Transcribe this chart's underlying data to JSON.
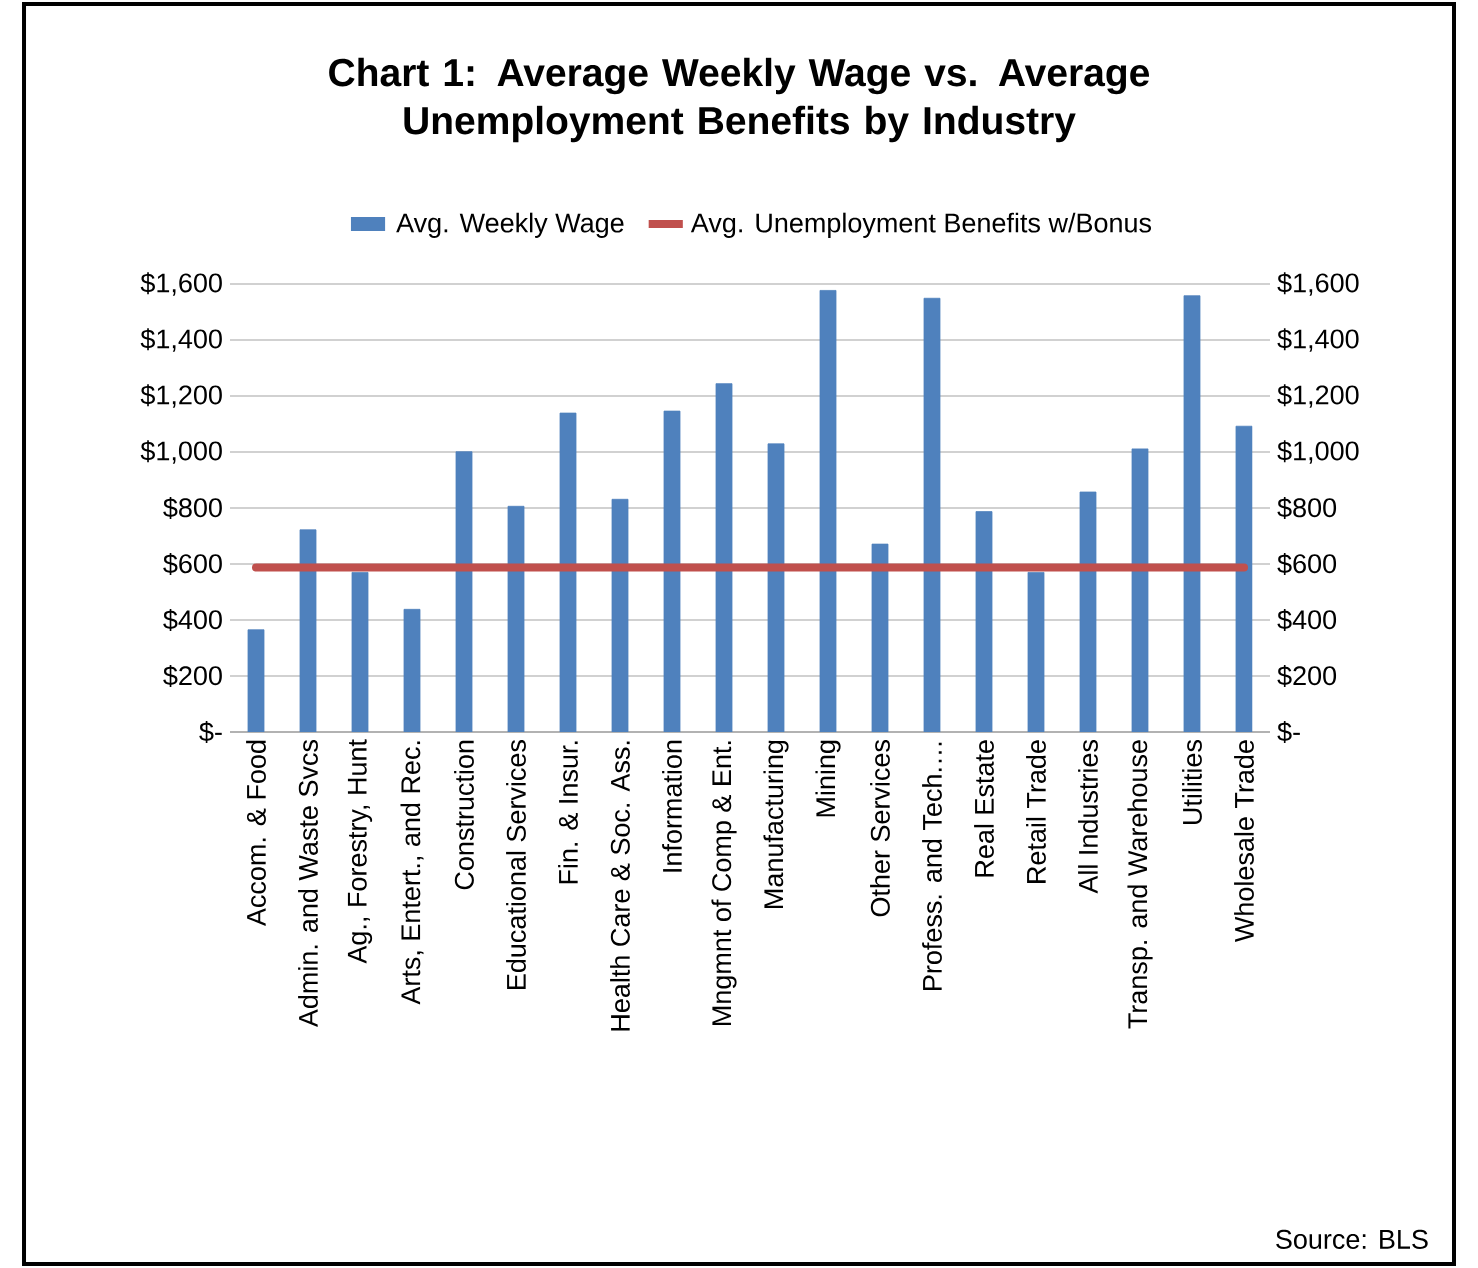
{
  "chart_data": {
    "type": "bar",
    "title": "Chart 1: Average Weekly Wage vs. Average Unemployment Benefits by Industry",
    "categories": [
      "Accom. & Food",
      "Admin. and Waste Svcs",
      "Ag., Forestry, Hunt",
      "Arts, Entert., and Rec.",
      "Construction",
      "Educational Services",
      "Fin. & Insur.",
      "Health Care & Soc. Ass.",
      "Information",
      "Mngmnt of Comp & Ent.",
      "Manufacturing",
      "Mining",
      "Other Services",
      "Profess. and Tech.…",
      "Real Estate",
      "Retail Trade",
      "All Industries",
      "Transp. and Warehouse",
      "Utilities",
      "Wholesale Trade"
    ],
    "series": [
      {
        "name": "Avg. Weekly Wage",
        "color": "#4f81bd",
        "values": [
          365,
          722,
          570,
          438,
          1001,
          806,
          1139,
          831,
          1146,
          1244,
          1029,
          1577,
          671,
          1549,
          787,
          570,
          857,
          1011,
          1558,
          1092
        ]
      },
      {
        "name": "Avg. Unemployment Benefits w/Bonus",
        "type": "line",
        "axis": "y2",
        "color": "#c0504d",
        "values": [
          587,
          587,
          587,
          587,
          587,
          587,
          587,
          587,
          587,
          587,
          587,
          587,
          587,
          587,
          587,
          587,
          587,
          587,
          587,
          587
        ]
      }
    ],
    "ylim": [
      0,
      1600
    ],
    "yticks": [
      {
        "value": 0,
        "label": "$-"
      },
      {
        "value": 200,
        "label": "$200"
      },
      {
        "value": 400,
        "label": "$400"
      },
      {
        "value": 600,
        "label": "$600"
      },
      {
        "value": 800,
        "label": "$800"
      },
      {
        "value": 1000,
        "label": "$1,000"
      },
      {
        "value": 1200,
        "label": "$1,200"
      },
      {
        "value": 1400,
        "label": "$1,400"
      },
      {
        "value": 1600,
        "label": "$1,600"
      }
    ],
    "y2lim": [
      0,
      1600
    ],
    "y2ticks": [
      {
        "value": 0,
        "label": "$-"
      },
      {
        "value": 200,
        "label": "$200"
      },
      {
        "value": 400,
        "label": "$400"
      },
      {
        "value": 600,
        "label": "$600"
      },
      {
        "value": 800,
        "label": "$800"
      },
      {
        "value": 1000,
        "label": "$1,000"
      },
      {
        "value": 1200,
        "label": "$1,200"
      },
      {
        "value": 1400,
        "label": "$1,400"
      },
      {
        "value": 1600,
        "label": "$1,600"
      }
    ],
    "grid": "y",
    "legend": "top",
    "marker": "none",
    "annotations": [
      "Source: BLS"
    ]
  }
}
